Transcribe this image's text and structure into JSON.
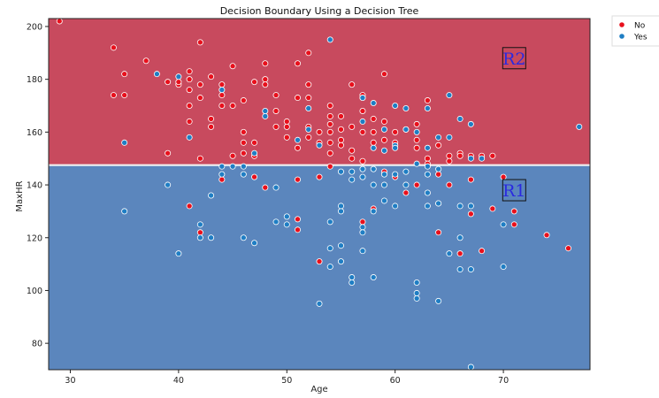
{
  "chart_data": {
    "type": "scatter",
    "title": "Decision Boundary Using a Decision Tree",
    "xlabel": "Age",
    "ylabel": "MaxHR",
    "xlim": [
      28,
      78
    ],
    "ylim": [
      70,
      203
    ],
    "xticks": [
      30,
      40,
      50,
      60,
      70
    ],
    "yticks": [
      80,
      100,
      120,
      140,
      160,
      180,
      200
    ],
    "grid": false,
    "legend_position": "outside-top-right",
    "boundary": {
      "axis": "y",
      "value": 147.5
    },
    "regions": [
      {
        "label": "R2",
        "side": "above",
        "color": "#c84a5e",
        "label_at": [
          71,
          188
        ]
      },
      {
        "label": "R1",
        "side": "below",
        "color": "#5b86bd",
        "label_at": [
          71,
          138
        ]
      }
    ],
    "series": [
      {
        "name": "No",
        "color": "#e8101c",
        "points": [
          [
            29,
            202
          ],
          [
            34,
            192
          ],
          [
            34,
            174
          ],
          [
            35,
            182
          ],
          [
            35,
            174
          ],
          [
            37,
            187
          ],
          [
            39,
            179
          ],
          [
            39,
            152
          ],
          [
            40,
            178
          ],
          [
            40,
            179
          ],
          [
            41,
            183
          ],
          [
            41,
            180
          ],
          [
            41,
            176
          ],
          [
            41,
            170
          ],
          [
            41,
            164
          ],
          [
            41,
            132
          ],
          [
            42,
            194
          ],
          [
            42,
            178
          ],
          [
            42,
            173
          ],
          [
            42,
            150
          ],
          [
            42,
            122
          ],
          [
            43,
            181
          ],
          [
            43,
            165
          ],
          [
            43,
            162
          ],
          [
            44,
            178
          ],
          [
            44,
            174
          ],
          [
            44,
            170
          ],
          [
            44,
            142
          ],
          [
            45,
            185
          ],
          [
            45,
            170
          ],
          [
            45,
            151
          ],
          [
            46,
            172
          ],
          [
            46,
            160
          ],
          [
            46,
            156
          ],
          [
            46,
            152
          ],
          [
            47,
            179
          ],
          [
            47,
            156
          ],
          [
            47,
            151
          ],
          [
            47,
            143
          ],
          [
            48,
            186
          ],
          [
            48,
            180
          ],
          [
            48,
            178
          ],
          [
            48,
            139
          ],
          [
            49,
            174
          ],
          [
            49,
            168
          ],
          [
            49,
            162
          ],
          [
            50,
            164
          ],
          [
            50,
            158
          ],
          [
            50,
            162
          ],
          [
            51,
            186
          ],
          [
            51,
            173
          ],
          [
            51,
            154
          ],
          [
            51,
            142
          ],
          [
            51,
            127
          ],
          [
            51,
            123
          ],
          [
            52,
            190
          ],
          [
            52,
            178
          ],
          [
            52,
            173
          ],
          [
            52,
            162
          ],
          [
            52,
            158
          ],
          [
            53,
            160
          ],
          [
            53,
            156
          ],
          [
            53,
            143
          ],
          [
            53,
            111
          ],
          [
            54,
            170
          ],
          [
            54,
            166
          ],
          [
            54,
            163
          ],
          [
            54,
            160
          ],
          [
            54,
            156
          ],
          [
            54,
            152
          ],
          [
            54,
            147
          ],
          [
            55,
            166
          ],
          [
            55,
            161
          ],
          [
            55,
            157
          ],
          [
            55,
            155
          ],
          [
            56,
            178
          ],
          [
            56,
            162
          ],
          [
            56,
            153
          ],
          [
            56,
            150
          ],
          [
            57,
            174
          ],
          [
            57,
            173
          ],
          [
            57,
            168
          ],
          [
            57,
            160
          ],
          [
            57,
            149
          ],
          [
            57,
            126
          ],
          [
            58,
            165
          ],
          [
            58,
            160
          ],
          [
            58,
            156
          ],
          [
            58,
            131
          ],
          [
            59,
            182
          ],
          [
            59,
            164
          ],
          [
            59,
            157
          ],
          [
            59,
            145
          ],
          [
            60,
            160
          ],
          [
            60,
            156
          ],
          [
            60,
            143
          ],
          [
            61,
            161
          ],
          [
            61,
            137
          ],
          [
            62,
            163
          ],
          [
            62,
            157
          ],
          [
            62,
            154
          ],
          [
            62,
            140
          ],
          [
            63,
            172
          ],
          [
            63,
            150
          ],
          [
            63,
            148
          ],
          [
            64,
            155
          ],
          [
            64,
            144
          ],
          [
            64,
            133
          ],
          [
            64,
            122
          ],
          [
            65,
            151
          ],
          [
            65,
            149
          ],
          [
            65,
            140
          ],
          [
            66,
            152
          ],
          [
            66,
            151
          ],
          [
            66,
            114
          ],
          [
            67,
            151
          ],
          [
            67,
            142
          ],
          [
            67,
            129
          ],
          [
            68,
            151
          ],
          [
            68,
            115
          ],
          [
            69,
            151
          ],
          [
            69,
            131
          ],
          [
            70,
            143
          ],
          [
            71,
            130
          ],
          [
            71,
            125
          ],
          [
            74,
            121
          ],
          [
            76,
            116
          ]
        ]
      },
      {
        "name": "Yes",
        "color": "#1f7ec4",
        "points": [
          [
            35,
            156
          ],
          [
            35,
            130
          ],
          [
            38,
            182
          ],
          [
            39,
            140
          ],
          [
            40,
            181
          ],
          [
            40,
            114
          ],
          [
            41,
            158
          ],
          [
            42,
            125
          ],
          [
            42,
            120
          ],
          [
            43,
            136
          ],
          [
            43,
            120
          ],
          [
            44,
            176
          ],
          [
            44,
            147
          ],
          [
            44,
            144
          ],
          [
            45,
            147
          ],
          [
            46,
            147
          ],
          [
            46,
            144
          ],
          [
            46,
            120
          ],
          [
            47,
            152
          ],
          [
            47,
            118
          ],
          [
            48,
            168
          ],
          [
            48,
            166
          ],
          [
            49,
            139
          ],
          [
            49,
            126
          ],
          [
            50,
            128
          ],
          [
            50,
            125
          ],
          [
            51,
            157
          ],
          [
            52,
            169
          ],
          [
            52,
            161
          ],
          [
            53,
            155
          ],
          [
            53,
            95
          ],
          [
            54,
            195
          ],
          [
            54,
            126
          ],
          [
            54,
            116
          ],
          [
            54,
            109
          ],
          [
            55,
            145
          ],
          [
            55,
            132
          ],
          [
            55,
            130
          ],
          [
            55,
            117
          ],
          [
            55,
            111
          ],
          [
            56,
            145
          ],
          [
            56,
            142
          ],
          [
            56,
            105
          ],
          [
            56,
            103
          ],
          [
            57,
            173
          ],
          [
            57,
            164
          ],
          [
            57,
            146
          ],
          [
            57,
            143
          ],
          [
            57,
            124
          ],
          [
            57,
            122
          ],
          [
            57,
            115
          ],
          [
            58,
            171
          ],
          [
            58,
            154
          ],
          [
            58,
            146
          ],
          [
            58,
            140
          ],
          [
            58,
            130
          ],
          [
            58,
            105
          ],
          [
            59,
            161
          ],
          [
            59,
            153
          ],
          [
            59,
            144
          ],
          [
            59,
            140
          ],
          [
            59,
            134
          ],
          [
            60,
            170
          ],
          [
            60,
            155
          ],
          [
            60,
            154
          ],
          [
            60,
            144
          ],
          [
            60,
            132
          ],
          [
            61,
            169
          ],
          [
            61,
            161
          ],
          [
            61,
            145
          ],
          [
            61,
            140
          ],
          [
            62,
            160
          ],
          [
            62,
            148
          ],
          [
            62,
            103
          ],
          [
            62,
            99
          ],
          [
            62,
            97
          ],
          [
            63,
            169
          ],
          [
            63,
            154
          ],
          [
            63,
            147
          ],
          [
            63,
            144
          ],
          [
            63,
            137
          ],
          [
            63,
            132
          ],
          [
            64,
            158
          ],
          [
            64,
            146
          ],
          [
            64,
            133
          ],
          [
            64,
            96
          ],
          [
            65,
            174
          ],
          [
            65,
            158
          ],
          [
            65,
            114
          ],
          [
            66,
            165
          ],
          [
            66,
            132
          ],
          [
            66,
            120
          ],
          [
            66,
            108
          ],
          [
            67,
            163
          ],
          [
            67,
            150
          ],
          [
            67,
            132
          ],
          [
            67,
            108
          ],
          [
            67,
            71
          ],
          [
            68,
            150
          ],
          [
            70,
            125
          ],
          [
            70,
            109
          ],
          [
            77,
            162
          ]
        ]
      }
    ]
  }
}
